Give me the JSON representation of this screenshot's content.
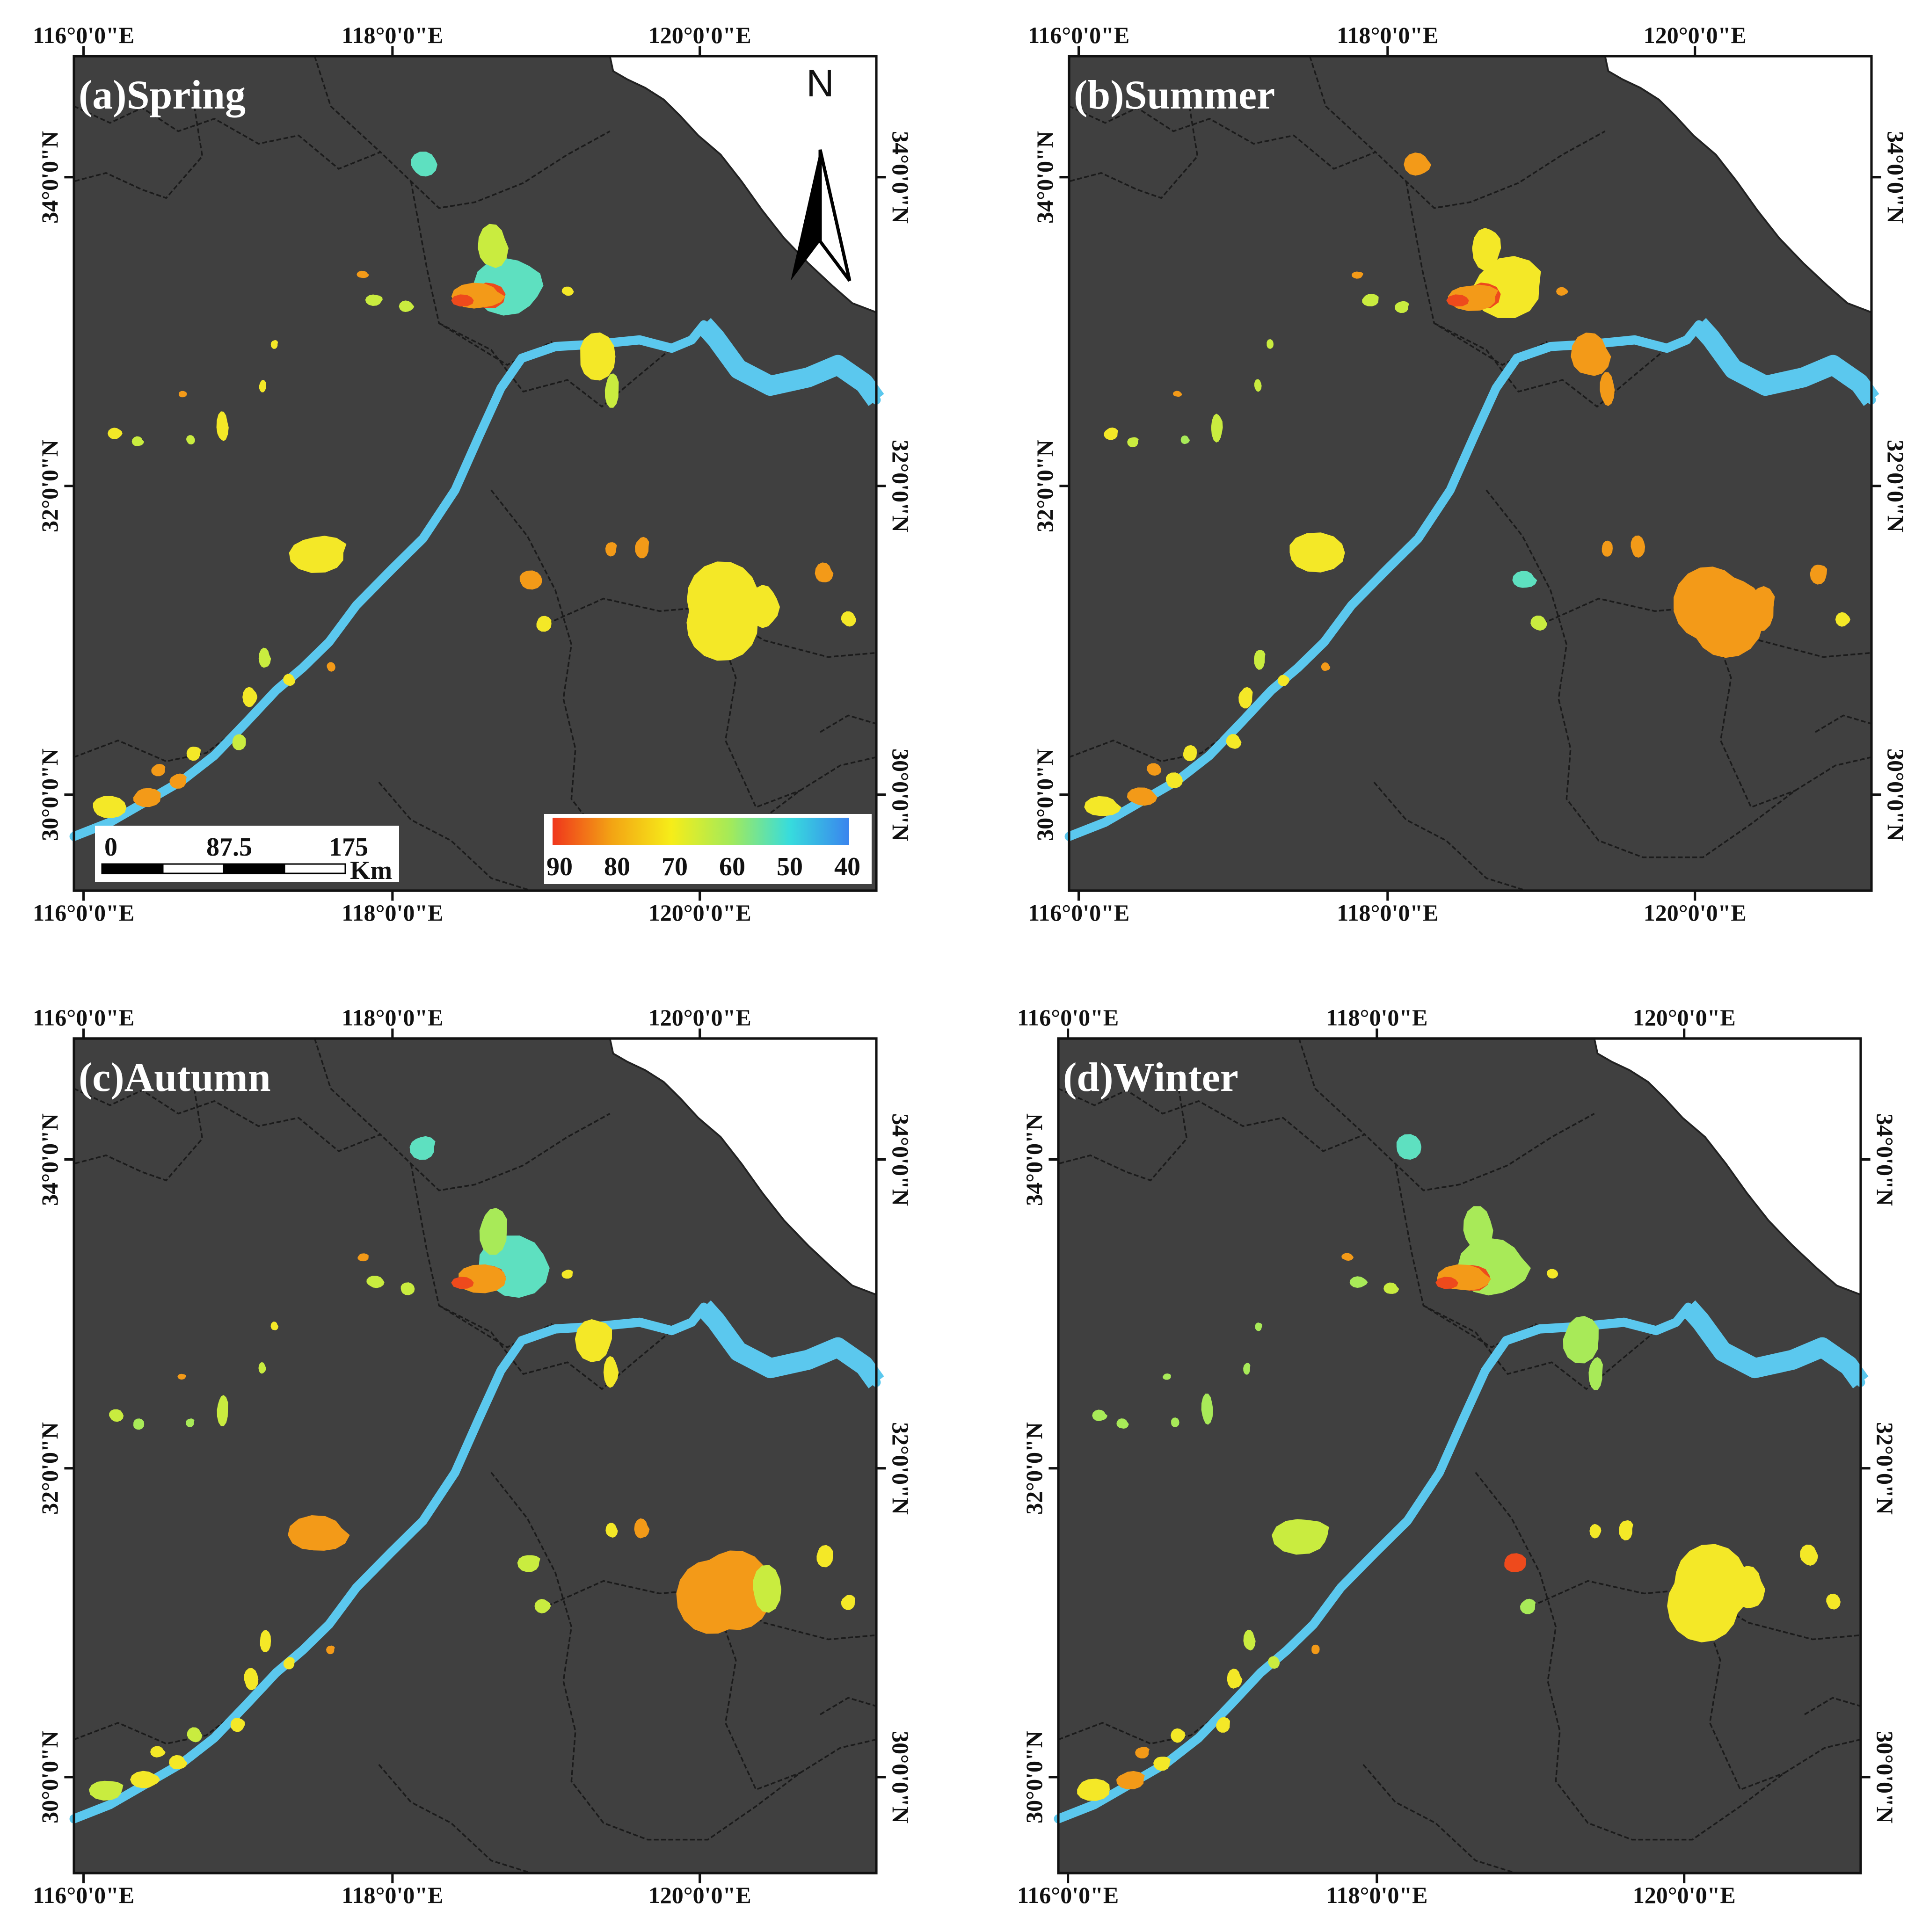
{
  "map": {
    "panels": [
      {
        "id": "a",
        "title": "(a)Spring"
      },
      {
        "id": "b",
        "title": "(b)Summer"
      },
      {
        "id": "c",
        "title": "(c)Autumn"
      },
      {
        "id": "d",
        "title": "(d)Winter"
      }
    ],
    "x_ticks": [
      "116°0'0\"E",
      "118°0'0\"E",
      "120°0'0\"E"
    ],
    "y_ticks": [
      "34°0'0\"N",
      "32°0'0\"N",
      "30°0'0\"N"
    ],
    "north_arrow_label": "N",
    "scale_bar": {
      "labels": [
        "0",
        "87.5",
        "175"
      ],
      "unit": "Km"
    },
    "legend": {
      "labels": [
        "90",
        "80",
        "70",
        "60",
        "50",
        "40"
      ],
      "range": [
        90,
        40
      ]
    },
    "colors": {
      "land": "#404040",
      "sea": "#ffffff",
      "river": "#5bc8ee",
      "boundary": "#1b1b1b",
      "legend_stops": [
        "#f0361c",
        "#f3a414",
        "#f6ed19",
        "#a3ea5a",
        "#37dcdd",
        "#3a84ee"
      ]
    }
  }
}
